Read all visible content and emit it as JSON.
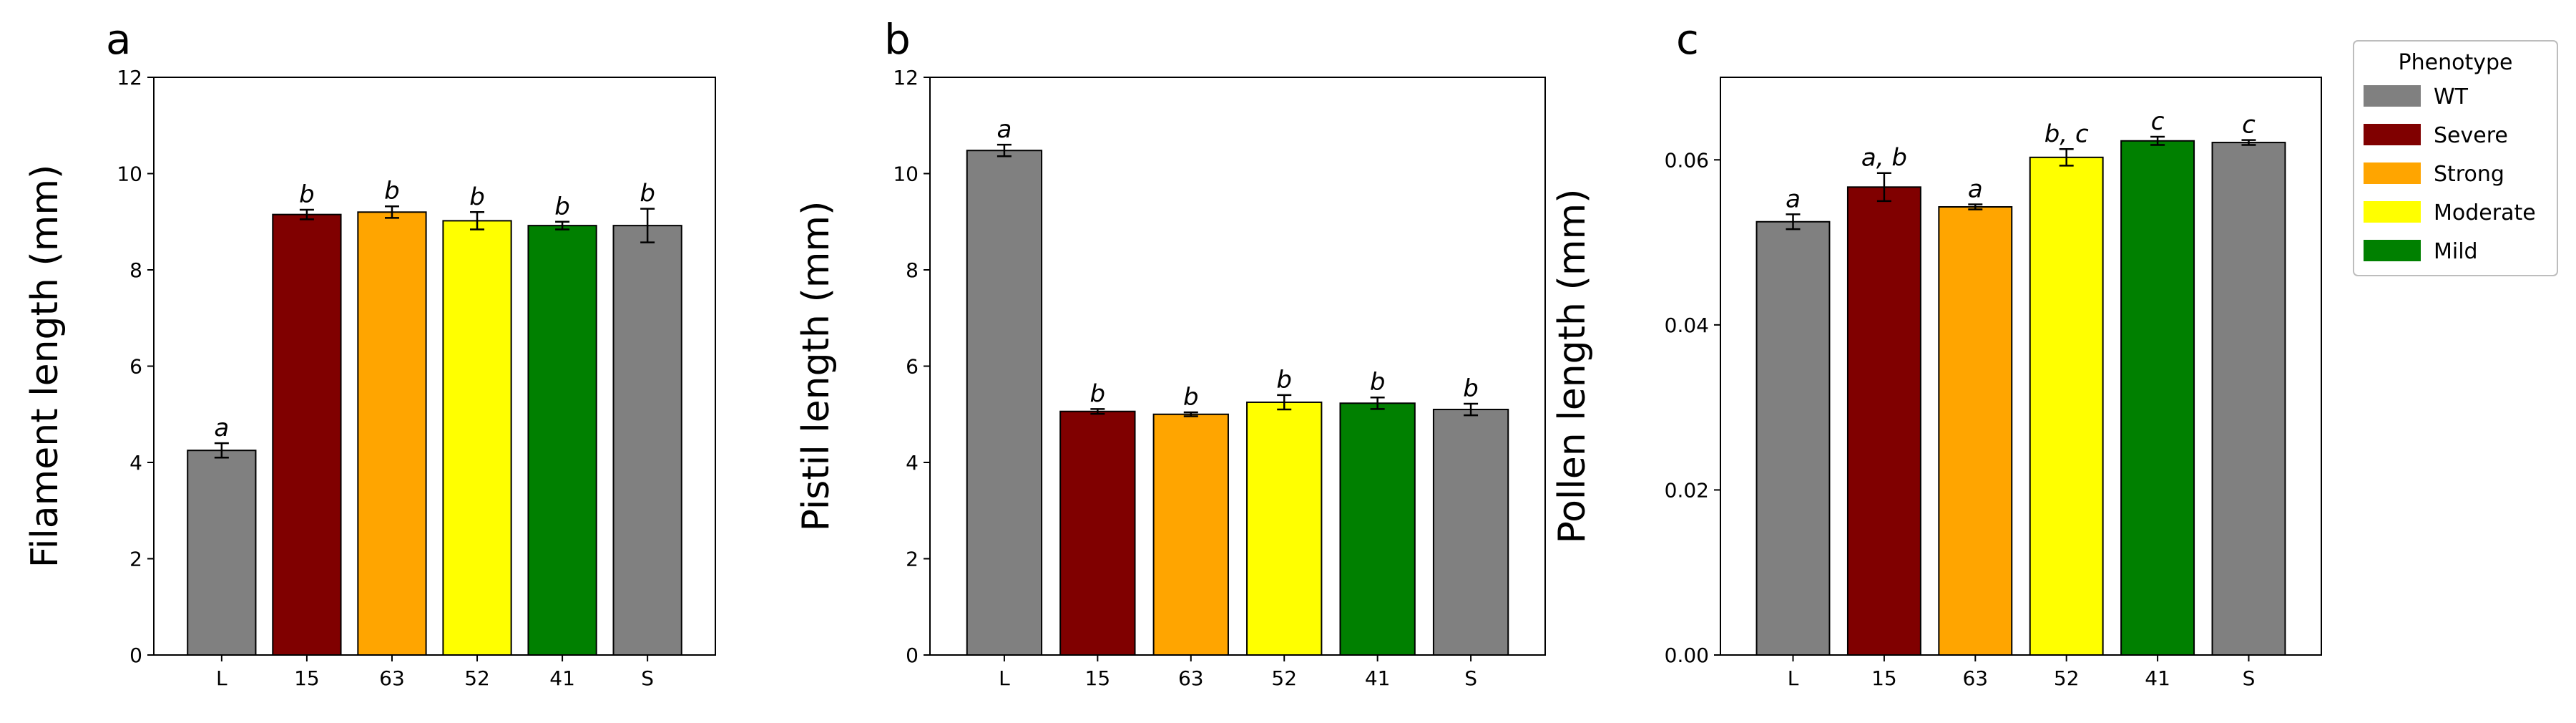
{
  "legend": {
    "title": "Phenotype",
    "items": [
      {
        "label": "WT",
        "color": "#808080"
      },
      {
        "label": "Severe",
        "color": "#800000"
      },
      {
        "label": "Strong",
        "color": "#FFA500"
      },
      {
        "label": "Moderate",
        "color": "#FFFF00"
      },
      {
        "label": "Mild",
        "color": "#008000"
      }
    ]
  },
  "chart_data": [
    {
      "type": "bar",
      "panel_label": "a",
      "ylabel": "Filament length (mm)",
      "categories": [
        "L",
        "15",
        "63",
        "52",
        "41",
        "S"
      ],
      "values": [
        4.25,
        9.15,
        9.2,
        9.02,
        8.92,
        8.92
      ],
      "errors": [
        0.15,
        0.1,
        0.12,
        0.18,
        0.08,
        0.35
      ],
      "colors": [
        "#808080",
        "#800000",
        "#FFA500",
        "#FFFF00",
        "#008000",
        "#808080"
      ],
      "significance": [
        "a",
        "b",
        "b",
        "b",
        "b",
        "b"
      ],
      "ylim": [
        0,
        12
      ],
      "yticks": [
        "0",
        "2",
        "4",
        "6",
        "8",
        "10",
        "12"
      ],
      "ytick_values": [
        0,
        2,
        4,
        6,
        8,
        10,
        12
      ]
    },
    {
      "type": "bar",
      "panel_label": "b",
      "ylabel": "Pistil length (mm)",
      "categories": [
        "L",
        "15",
        "63",
        "52",
        "41",
        "S"
      ],
      "values": [
        10.48,
        5.06,
        5.0,
        5.25,
        5.23,
        5.1
      ],
      "errors": [
        0.12,
        0.05,
        0.04,
        0.15,
        0.12,
        0.12
      ],
      "colors": [
        "#808080",
        "#800000",
        "#FFA500",
        "#FFFF00",
        "#008000",
        "#808080"
      ],
      "significance": [
        "a",
        "b",
        "b",
        "b",
        "b",
        "b"
      ],
      "ylim": [
        0,
        12
      ],
      "yticks": [
        "0",
        "2",
        "4",
        "6",
        "8",
        "10",
        "12"
      ],
      "ytick_values": [
        0,
        2,
        4,
        6,
        8,
        10,
        12
      ]
    },
    {
      "type": "bar",
      "panel_label": "c",
      "ylabel": "Pollen length (mm)",
      "categories": [
        "L",
        "15",
        "63",
        "52",
        "41",
        "S"
      ],
      "values": [
        0.0525,
        0.0567,
        0.0543,
        0.0603,
        0.0623,
        0.0621
      ],
      "errors": [
        0.0009,
        0.0017,
        0.0003,
        0.001,
        0.0005,
        0.0003
      ],
      "colors": [
        "#808080",
        "#800000",
        "#FFA500",
        "#FFFF00",
        "#008000",
        "#808080"
      ],
      "significance": [
        "a",
        "a, b",
        "a",
        "b, c",
        "c",
        "c"
      ],
      "ylim": [
        0,
        0.07
      ],
      "yticks": [
        "0.00",
        "0.02",
        "0.04",
        "0.06"
      ],
      "ytick_values": [
        0,
        0.02,
        0.04,
        0.06
      ]
    }
  ]
}
